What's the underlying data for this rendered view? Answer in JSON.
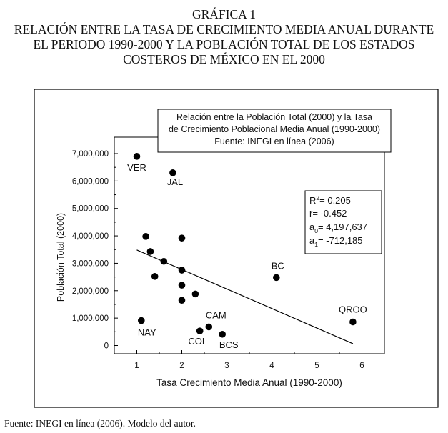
{
  "heading": {
    "lines": [
      "GRÁFICA 1",
      "RELACIÓN ENTRE LA TASA DE CRECIMIENTO MEDIA ANUAL DURANTE",
      "EL PERIODO 1990-2000 Y LA POBLACIÓN TOTAL DE LOS ESTADOS",
      "COSTEROS DE MÉXICO EN EL 2000"
    ]
  },
  "source": "Fuente: INEGI en línea (2006). Modelo del autor.",
  "chart_data": {
    "type": "scatter",
    "title_lines": [
      "Relación entre la Población Total (2000) y la Tasa",
      "de Crecimiento Poblacional Media Anual (1990-2000)",
      "Fuente: INEGI en línea (2006)"
    ],
    "xlabel": "Tasa Crecimiento Media Anual (1990-2000)",
    "ylabel": "Población Total (2000)",
    "xlim": [
      0.5,
      6.5
    ],
    "ylim": [
      -300000,
      7600000
    ],
    "xticks": [
      1,
      2,
      3,
      4,
      5,
      6
    ],
    "yticks": [
      0,
      1000000,
      2000000,
      3000000,
      4000000,
      5000000,
      6000000,
      7000000
    ],
    "ytick_labels": [
      "0",
      "1,000,000",
      "2,000,000",
      "3,000,000",
      "4,000,000",
      "5,000,000",
      "6,000,000",
      "7,000,000"
    ],
    "points": [
      {
        "x": 1.0,
        "y": 6900000,
        "label": "VER"
      },
      {
        "x": 1.8,
        "y": 6300000,
        "label": "JAL"
      },
      {
        "x": 1.2,
        "y": 3980000,
        "label": ""
      },
      {
        "x": 1.3,
        "y": 3430000,
        "label": ""
      },
      {
        "x": 1.6,
        "y": 3070000,
        "label": ""
      },
      {
        "x": 1.4,
        "y": 2520000,
        "label": ""
      },
      {
        "x": 2.0,
        "y": 3920000,
        "label": ""
      },
      {
        "x": 2.0,
        "y": 2750000,
        "label": ""
      },
      {
        "x": 2.0,
        "y": 2200000,
        "label": ""
      },
      {
        "x": 2.0,
        "y": 1650000,
        "label": ""
      },
      {
        "x": 2.3,
        "y": 1880000,
        "label": ""
      },
      {
        "x": 1.1,
        "y": 910000,
        "label": "NAY"
      },
      {
        "x": 2.4,
        "y": 530000,
        "label": "COL"
      },
      {
        "x": 2.6,
        "y": 680000,
        "label": "CAM"
      },
      {
        "x": 2.9,
        "y": 410000,
        "label": "BCS"
      },
      {
        "x": 4.1,
        "y": 2480000,
        "label": "BC"
      },
      {
        "x": 5.8,
        "y": 860000,
        "label": "QROO"
      }
    ],
    "regression": {
      "x": [
        1.0,
        5.8
      ],
      "a0": 4197637,
      "a1": -712185
    },
    "stats": {
      "r2": "0.205",
      "r": "-0.452",
      "a0": "4,197,637",
      "a1": "-712,185"
    }
  }
}
